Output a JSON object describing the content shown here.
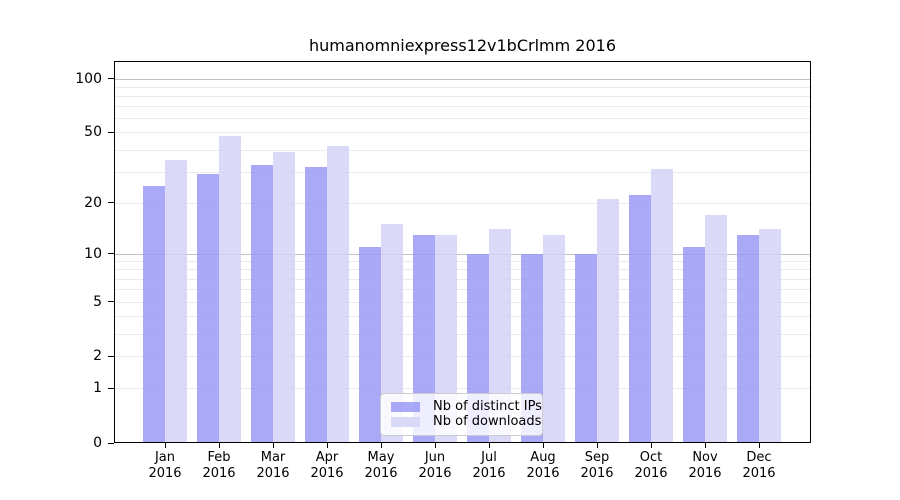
{
  "chart_data": {
    "type": "bar",
    "title": "humanomniexpress12v1bCrlmm 2016",
    "year_label": "2016",
    "categories": [
      "Jan",
      "Feb",
      "Mar",
      "Apr",
      "May",
      "Jun",
      "Jul",
      "Aug",
      "Sep",
      "Oct",
      "Nov",
      "Dec"
    ],
    "series": [
      {
        "name": "Nb of distinct IPs",
        "color": "#9a9af6",
        "values": [
          25,
          29,
          33,
          32,
          11,
          13,
          10,
          10,
          10,
          22,
          11,
          13
        ]
      },
      {
        "name": "Nb of downloads",
        "color": "#d3d3f7",
        "values": [
          35,
          48,
          39,
          42,
          15,
          13,
          14,
          13,
          21,
          31,
          17,
          14
        ]
      }
    ],
    "xlabel": "",
    "ylabel": "",
    "yscale": "log10(value+1)",
    "ylim": [
      0,
      125
    ],
    "yticks": [
      0,
      1,
      2,
      5,
      10,
      20,
      50,
      100
    ],
    "gridlines": [
      1,
      2,
      3,
      4,
      5,
      6,
      7,
      8,
      9,
      10,
      20,
      30,
      40,
      50,
      60,
      70,
      80,
      90,
      100
    ],
    "major_gridlines": [
      10,
      100
    ],
    "grid_color": "#ebebeb",
    "major_grid_color": "#c2c2c2",
    "axis_color": "#000000",
    "legend_position": "bottom-center",
    "grid": "on"
  }
}
